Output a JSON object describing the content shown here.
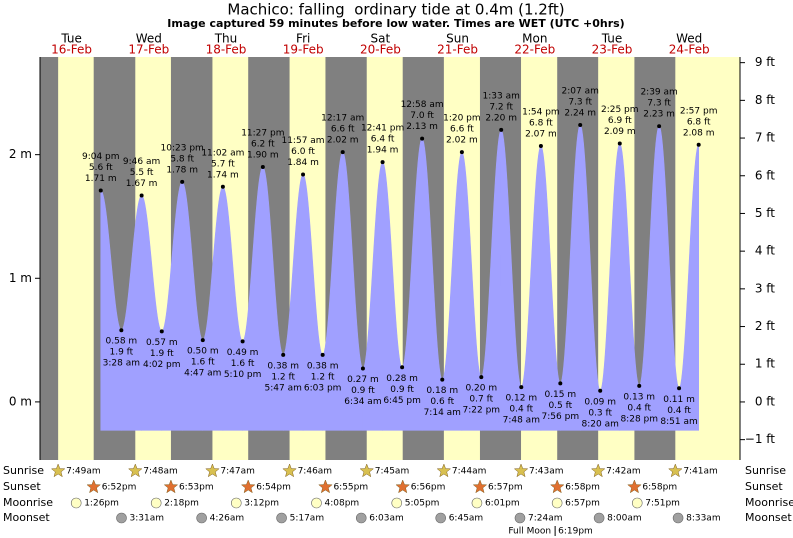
{
  "chart_data": {
    "type": "tide",
    "title": "Machico: falling  ordinary tide at 0.4m (1.2ft)",
    "subtitle": "Image captured 59 minutes before low water. Times are WET (UTC +0hrs)",
    "days": [
      {
        "weekday": "Tue",
        "date": "16-Feb"
      },
      {
        "weekday": "Wed",
        "date": "17-Feb"
      },
      {
        "weekday": "Thu",
        "date": "18-Feb"
      },
      {
        "weekday": "Fri",
        "date": "19-Feb"
      },
      {
        "weekday": "Sat",
        "date": "20-Feb"
      },
      {
        "weekday": "Sun",
        "date": "21-Feb"
      },
      {
        "weekday": "Mon",
        "date": "22-Feb"
      },
      {
        "weekday": "Tue",
        "date": "23-Feb"
      },
      {
        "weekday": "Wed",
        "date": "24-Feb"
      }
    ],
    "ylim": [
      -0.47,
      2.79
    ],
    "yticks": [
      {
        "value": 0,
        "label": "0 m"
      },
      {
        "value": 1,
        "label": "1 m"
      },
      {
        "value": 2,
        "label": "2 m"
      }
    ],
    "y2lim": [
      -1.54,
      9.15
    ],
    "y2ticks": [
      {
        "value": -1,
        "label": "−1 ft"
      },
      {
        "value": 0,
        "label": "0 ft"
      },
      {
        "value": 1,
        "label": "1 ft"
      },
      {
        "value": 2,
        "label": "2 ft"
      },
      {
        "value": 3,
        "label": "3 ft"
      },
      {
        "value": 4,
        "label": "4 ft"
      },
      {
        "value": 5,
        "label": "5 ft"
      },
      {
        "value": 6,
        "label": "6 ft"
      },
      {
        "value": 7,
        "label": "7 ft"
      },
      {
        "value": 8,
        "label": "8 ft"
      },
      {
        "value": 9,
        "label": "9 ft"
      }
    ],
    "tide": {
      "color": "#a0a0ff",
      "times": [
        "9:04 pm",
        "3:28 am",
        "9:46 am",
        "4:02 pm",
        "10:23 pm",
        "4:47 am",
        "11:02 am",
        "5:10 pm",
        "11:27 pm",
        "5:47 am",
        "11:57 am",
        "6:03 pm",
        "12:17 am",
        "6:34 am",
        "12:41 pm",
        "6:45 pm",
        "12:58 am",
        "7:14 am",
        "1:20 pm",
        "7:22 pm",
        "1:33 am",
        "7:48 am",
        "1:54 pm",
        "7:56 pm",
        "2:07 am",
        "8:20 am",
        "2:25 pm",
        "8:28 pm",
        "2:39 am",
        "8:51 am",
        "2:57 pm"
      ],
      "values": [
        1.71,
        0.58,
        1.67,
        0.57,
        1.78,
        0.5,
        1.74,
        0.49,
        1.9,
        0.38,
        1.84,
        0.38,
        2.02,
        0.27,
        1.94,
        0.28,
        2.13,
        0.18,
        2.02,
        0.2,
        2.2,
        0.12,
        2.07,
        0.15,
        2.24,
        0.09,
        2.09,
        0.13,
        2.23,
        0.11,
        2.08
      ],
      "value_labels": [
        "1.71 m",
        "0.58 m",
        "1.67 m",
        "0.57 m",
        "1.78 m",
        "0.50 m",
        "1.74 m",
        "0.49 m",
        "1.90 m",
        "0.38 m",
        "1.84 m",
        "0.38 m",
        "2.02 m",
        "0.27 m",
        "1.94 m",
        "0.28 m",
        "2.13 m",
        "0.18 m",
        "2.02 m",
        "0.20 m",
        "2.20 m",
        "0.12 m",
        "2.07 m",
        "0.15 m",
        "2.24 m",
        "0.09 m",
        "2.09 m",
        "0.13 m",
        "2.23 m",
        "0.11 m",
        "2.08 m"
      ],
      "ft_labels": [
        "5.6 ft",
        "1.9 ft",
        "5.5 ft",
        "1.9 ft",
        "5.8 ft",
        "1.6 ft",
        "5.7 ft",
        "1.6 ft",
        "6.2 ft",
        "1.2 ft",
        "6.0 ft",
        "1.2 ft",
        "6.6 ft",
        "0.9 ft",
        "6.4 ft",
        "0.9 ft",
        "7.0 ft",
        "0.6 ft",
        "6.6 ft",
        "0.7 ft",
        "7.2 ft",
        "0.4 ft",
        "6.8 ft",
        "0.5 ft",
        "7.3 ft",
        "0.3 ft",
        "6.9 ft",
        "0.4 ft",
        "7.3 ft",
        "0.4 ft",
        "6.8 ft"
      ]
    },
    "sunrise": {
      "label": "Sunrise",
      "times": [
        "7:49am",
        "7:48am",
        "7:47am",
        "7:46am",
        "7:45am",
        "7:44am",
        "7:43am",
        "7:42am",
        "7:41am"
      ]
    },
    "sunset": {
      "label": "Sunset",
      "times": [
        "6:52pm",
        "6:53pm",
        "6:54pm",
        "6:55pm",
        "6:56pm",
        "6:57pm",
        "6:58pm",
        "6:58pm"
      ]
    },
    "moonrise": {
      "label": "Moonrise",
      "times": [
        "1:26pm",
        "2:18pm",
        "3:12pm",
        "4:08pm",
        "5:05pm",
        "6:01pm",
        "6:57pm",
        "7:51pm"
      ]
    },
    "moonset": {
      "label": "Moonset",
      "times": [
        "3:31am",
        "4:26am",
        "5:17am",
        "6:03am",
        "6:45am",
        "7:24am",
        "8:00am",
        "8:33am"
      ]
    },
    "full_moon": {
      "label": "Full Moon",
      "time": "6:19pm"
    }
  }
}
